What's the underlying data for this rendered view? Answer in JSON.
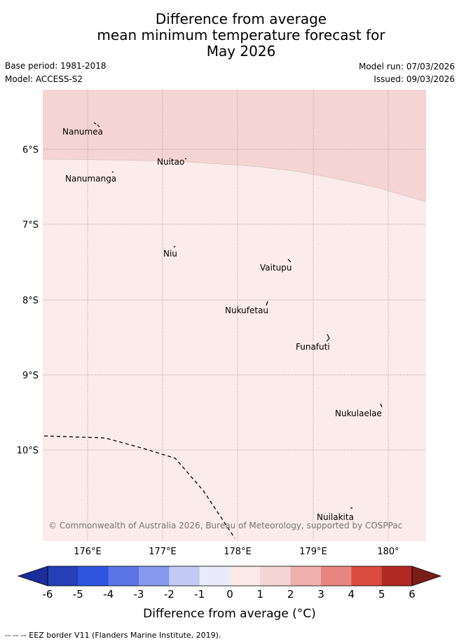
{
  "title": {
    "line1": "Difference from average",
    "line2": "mean minimum temperature forecast for",
    "line3": "May 2026"
  },
  "meta": {
    "base_period": "Base period: 1981-2018",
    "model": "Model: ACCESS-S2",
    "model_run": "Model run: 07/03/2026",
    "issued": "Issued: 09/03/2026"
  },
  "map": {
    "lon_ticks": [
      "176°E",
      "177°E",
      "178°E",
      "179°E",
      "180°"
    ],
    "lat_ticks": [
      "6°S",
      "7°S",
      "8°S",
      "9°S",
      "10°S"
    ],
    "places": [
      {
        "name": "Nanumea"
      },
      {
        "name": "Nuitao"
      },
      {
        "name": "Nanumanga"
      },
      {
        "name": "Niu"
      },
      {
        "name": "Vaitupu"
      },
      {
        "name": "Nukufetau"
      },
      {
        "name": "Funafuti"
      },
      {
        "name": "Nukulaelae"
      },
      {
        "name": "Nuilakita"
      }
    ],
    "copyright": "© Commonwealth of Australia 2026, Bureau of Meteorology, supported by COSPPac"
  },
  "colorbar": {
    "ticks": [
      "-6",
      "-5",
      "-4",
      "-3",
      "-2",
      "-1",
      "0",
      "1",
      "2",
      "3",
      "4",
      "5",
      "6"
    ],
    "colors": [
      "#1a2d9a",
      "#263eb6",
      "#2f55e0",
      "#5a74e6",
      "#8799ec",
      "#c2c9f4",
      "#e9ebfb",
      "#fbe9e8",
      "#f5d5d3",
      "#edb0ac",
      "#e88580",
      "#d94a3f",
      "#b02a22",
      "#7a1d16"
    ],
    "label": "Difference from average (°C)"
  },
  "legend_note": "-- -- -- EEZ border V11 (Flanders Marine Institute, 2019)."
}
